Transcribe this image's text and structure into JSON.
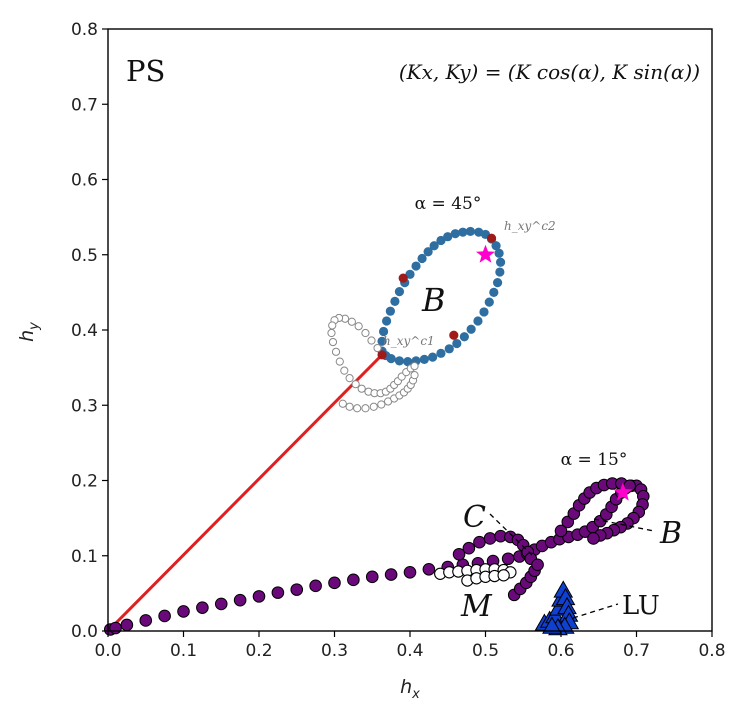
{
  "chart_data": {
    "type": "scatter",
    "title": "",
    "panel_label": "PS",
    "formula": "(Kx, Ky) = (K cos(α), K sin(α))",
    "xlabel": "h_x",
    "ylabel": "h_y",
    "xlim": [
      0.0,
      0.8
    ],
    "ylim": [
      0.0,
      0.8
    ],
    "xticks": [
      "0.0",
      "0.1",
      "0.2",
      "0.3",
      "0.4",
      "0.5",
      "0.6",
      "0.7",
      "0.8"
    ],
    "yticks": [
      "0.0",
      "0.1",
      "0.2",
      "0.3",
      "0.4",
      "0.5",
      "0.6",
      "0.7",
      "0.8"
    ],
    "annotations": {
      "alpha45": "α = 45°",
      "alpha15": "α = 15°",
      "b_upper": "B",
      "b_lower": "B",
      "c_label": "C",
      "m_label": "M",
      "lu_label": "LU",
      "hc1": "h_xy^c1",
      "hc2": "h_xy^c2"
    },
    "colors": {
      "red_line": "#e02020",
      "steelblue": "#2f6ea0",
      "dark_red": "#a01a1a",
      "purple": "#6a0a7a",
      "magenta": "#ff00cc",
      "blue_triangle": "#1040d0",
      "open_gray": "#888888"
    },
    "series": [
      {
        "name": "alpha45 red line",
        "marker": "line",
        "points": [
          [
            0.0,
            0.0
          ],
          [
            0.363,
            0.367
          ]
        ]
      },
      {
        "name": "alpha45 blue ring",
        "marker": "filled-circle",
        "points": [
          [
            0.363,
            0.372
          ],
          [
            0.363,
            0.385
          ],
          [
            0.365,
            0.398
          ],
          [
            0.369,
            0.412
          ],
          [
            0.374,
            0.425
          ],
          [
            0.38,
            0.438
          ],
          [
            0.386,
            0.451
          ],
          [
            0.393,
            0.463
          ],
          [
            0.4,
            0.474
          ],
          [
            0.408,
            0.485
          ],
          [
            0.416,
            0.495
          ],
          [
            0.424,
            0.504
          ],
          [
            0.432,
            0.512
          ],
          [
            0.441,
            0.519
          ],
          [
            0.45,
            0.524
          ],
          [
            0.46,
            0.528
          ],
          [
            0.47,
            0.53
          ],
          [
            0.48,
            0.531
          ],
          [
            0.491,
            0.53
          ],
          [
            0.5,
            0.527
          ],
          [
            0.508,
            0.521
          ],
          [
            0.514,
            0.512
          ],
          [
            0.518,
            0.502
          ],
          [
            0.52,
            0.49
          ],
          [
            0.519,
            0.477
          ],
          [
            0.516,
            0.463
          ],
          [
            0.511,
            0.45
          ],
          [
            0.505,
            0.437
          ],
          [
            0.498,
            0.424
          ],
          [
            0.49,
            0.412
          ],
          [
            0.481,
            0.401
          ],
          [
            0.472,
            0.391
          ],
          [
            0.462,
            0.382
          ],
          [
            0.452,
            0.375
          ],
          [
            0.441,
            0.369
          ],
          [
            0.43,
            0.364
          ],
          [
            0.419,
            0.361
          ],
          [
            0.408,
            0.359
          ],
          [
            0.397,
            0.358
          ],
          [
            0.386,
            0.359
          ],
          [
            0.375,
            0.362
          ],
          [
            0.368,
            0.366
          ]
        ]
      },
      {
        "name": "alpha45 dark red points",
        "marker": "filled-circle",
        "points": [
          [
            0.363,
            0.367
          ],
          [
            0.391,
            0.469
          ],
          [
            0.458,
            0.393
          ],
          [
            0.508,
            0.522
          ]
        ]
      },
      {
        "name": "alpha45 open circles",
        "marker": "open-circle",
        "points": [
          [
            0.357,
            0.376
          ],
          [
            0.349,
            0.386
          ],
          [
            0.341,
            0.396
          ],
          [
            0.332,
            0.405
          ],
          [
            0.323,
            0.411
          ],
          [
            0.314,
            0.415
          ],
          [
            0.306,
            0.416
          ],
          [
            0.3,
            0.413
          ],
          [
            0.297,
            0.406
          ],
          [
            0.296,
            0.396
          ],
          [
            0.298,
            0.384
          ],
          [
            0.302,
            0.371
          ],
          [
            0.307,
            0.358
          ],
          [
            0.313,
            0.346
          ],
          [
            0.32,
            0.336
          ],
          [
            0.328,
            0.328
          ],
          [
            0.336,
            0.322
          ],
          [
            0.345,
            0.318
          ],
          [
            0.353,
            0.316
          ],
          [
            0.361,
            0.316
          ],
          [
            0.368,
            0.318
          ],
          [
            0.374,
            0.322
          ],
          [
            0.379,
            0.327
          ],
          [
            0.384,
            0.332
          ],
          [
            0.389,
            0.338
          ],
          [
            0.395,
            0.344
          ],
          [
            0.401,
            0.349
          ],
          [
            0.406,
            0.352
          ],
          [
            0.311,
            0.302
          ],
          [
            0.32,
            0.298
          ],
          [
            0.33,
            0.296
          ],
          [
            0.341,
            0.296
          ],
          [
            0.352,
            0.298
          ],
          [
            0.362,
            0.301
          ],
          [
            0.371,
            0.305
          ],
          [
            0.379,
            0.309
          ],
          [
            0.386,
            0.313
          ],
          [
            0.392,
            0.317
          ],
          [
            0.397,
            0.322
          ],
          [
            0.401,
            0.327
          ],
          [
            0.404,
            0.333
          ],
          [
            0.406,
            0.34
          ]
        ]
      },
      {
        "name": "alpha45 star",
        "marker": "star",
        "points": [
          [
            0.5,
            0.5
          ]
        ]
      },
      {
        "name": "alpha15 purple",
        "marker": "filled-circle",
        "points": [
          [
            0.003,
            0.002
          ],
          [
            0.01,
            0.004
          ],
          [
            0.025,
            0.008
          ],
          [
            0.05,
            0.014
          ],
          [
            0.075,
            0.02
          ],
          [
            0.1,
            0.026
          ],
          [
            0.125,
            0.031
          ],
          [
            0.15,
            0.036
          ],
          [
            0.175,
            0.041
          ],
          [
            0.2,
            0.046
          ],
          [
            0.225,
            0.051
          ],
          [
            0.25,
            0.055
          ],
          [
            0.275,
            0.06
          ],
          [
            0.3,
            0.064
          ],
          [
            0.325,
            0.068
          ],
          [
            0.35,
            0.072
          ],
          [
            0.375,
            0.075
          ],
          [
            0.4,
            0.078
          ],
          [
            0.425,
            0.082
          ],
          [
            0.45,
            0.085
          ],
          [
            0.47,
            0.088
          ],
          [
            0.49,
            0.09
          ],
          [
            0.51,
            0.093
          ],
          [
            0.53,
            0.096
          ],
          [
            0.545,
            0.099
          ],
          [
            0.555,
            0.103
          ],
          [
            0.565,
            0.108
          ],
          [
            0.575,
            0.113
          ],
          [
            0.587,
            0.118
          ],
          [
            0.598,
            0.122
          ],
          [
            0.61,
            0.125
          ],
          [
            0.622,
            0.128
          ],
          [
            0.632,
            0.132
          ],
          [
            0.642,
            0.138
          ],
          [
            0.652,
            0.146
          ],
          [
            0.66,
            0.155
          ],
          [
            0.667,
            0.165
          ],
          [
            0.673,
            0.175
          ],
          [
            0.68,
            0.184
          ],
          [
            0.686,
            0.19
          ],
          [
            0.693,
            0.193
          ],
          [
            0.7,
            0.193
          ],
          [
            0.706,
            0.188
          ],
          [
            0.709,
            0.179
          ],
          [
            0.708,
            0.168
          ],
          [
            0.703,
            0.158
          ],
          [
            0.696,
            0.15
          ],
          [
            0.688,
            0.143
          ],
          [
            0.679,
            0.138
          ],
          [
            0.67,
            0.134
          ],
          [
            0.661,
            0.13
          ],
          [
            0.652,
            0.127
          ],
          [
            0.643,
            0.123
          ],
          [
            0.465,
            0.102
          ],
          [
            0.478,
            0.11
          ],
          [
            0.492,
            0.118
          ],
          [
            0.506,
            0.123
          ],
          [
            0.52,
            0.126
          ],
          [
            0.533,
            0.125
          ],
          [
            0.543,
            0.121
          ],
          [
            0.55,
            0.114
          ],
          [
            0.556,
            0.105
          ],
          [
            0.56,
            0.096
          ],
          [
            0.6,
            0.133
          ],
          [
            0.609,
            0.145
          ],
          [
            0.617,
            0.156
          ],
          [
            0.624,
            0.167
          ],
          [
            0.631,
            0.176
          ],
          [
            0.638,
            0.184
          ],
          [
            0.647,
            0.19
          ],
          [
            0.657,
            0.194
          ],
          [
            0.668,
            0.196
          ],
          [
            0.68,
            0.196
          ],
          [
            0.691,
            0.193
          ],
          [
            0.538,
            0.048
          ],
          [
            0.546,
            0.056
          ],
          [
            0.554,
            0.064
          ],
          [
            0.56,
            0.072
          ],
          [
            0.565,
            0.08
          ],
          [
            0.569,
            0.088
          ]
        ]
      },
      {
        "name": "alpha15 open circles",
        "marker": "open-circle",
        "points": [
          [
            0.44,
            0.076
          ],
          [
            0.452,
            0.078
          ],
          [
            0.464,
            0.079
          ],
          [
            0.476,
            0.08
          ],
          [
            0.488,
            0.081
          ],
          [
            0.5,
            0.082
          ],
          [
            0.512,
            0.082
          ],
          [
            0.524,
            0.081
          ],
          [
            0.533,
            0.078
          ],
          [
            0.476,
            0.067
          ],
          [
            0.488,
            0.07
          ],
          [
            0.5,
            0.072
          ],
          [
            0.512,
            0.073
          ],
          [
            0.524,
            0.074
          ]
        ]
      },
      {
        "name": "alpha15 star",
        "marker": "star",
        "points": [
          [
            0.682,
            0.184
          ]
        ]
      },
      {
        "name": "LU triangles",
        "marker": "triangle",
        "points": [
          [
            0.578,
            0.01
          ],
          [
            0.585,
            0.014
          ],
          [
            0.592,
            0.02
          ],
          [
            0.597,
            0.03
          ],
          [
            0.6,
            0.042
          ],
          [
            0.603,
            0.054
          ],
          [
            0.606,
            0.044
          ],
          [
            0.608,
            0.032
          ],
          [
            0.61,
            0.022
          ],
          [
            0.611,
            0.012
          ],
          [
            0.605,
            0.006
          ],
          [
            0.596,
            0.004
          ],
          [
            0.588,
            0.006
          ]
        ]
      }
    ]
  }
}
